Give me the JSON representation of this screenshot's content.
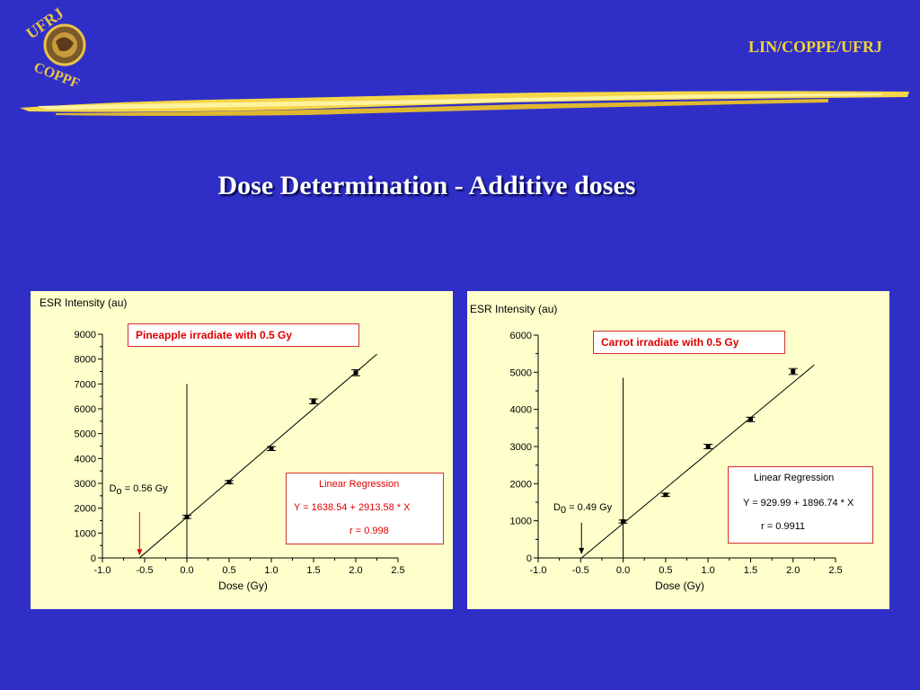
{
  "header": {
    "organization": "LIN/COPPE/UFRJ",
    "logo_text_top": "UFRJ",
    "logo_text_bottom": "COPPE",
    "accent_color": "#f0d23c"
  },
  "slide_title": "Dose  Determination  -  Additive doses",
  "chart_data": [
    {
      "type": "scatter",
      "title": "",
      "ylabel": "ESR  Intensity  (au)",
      "xlabel": "Dose  (Gy)",
      "xlim": [
        -1.0,
        2.5
      ],
      "ylim": [
        0,
        9000
      ],
      "xticks": [
        -1.0,
        -0.5,
        0.0,
        0.5,
        1.0,
        1.5,
        2.0,
        2.5
      ],
      "xtick_labels": [
        "-1.0",
        "-0.5",
        "0.0",
        "0.5",
        "1.0",
        "1.5",
        "2.0",
        "2.5"
      ],
      "yticks": [
        0,
        1000,
        2000,
        3000,
        4000,
        5000,
        6000,
        7000,
        8000,
        9000
      ],
      "ytick_labels": [
        "0",
        "1000",
        "2000",
        "3000",
        "4000",
        "5000",
        "6000",
        "7000",
        "8000",
        "9000"
      ],
      "series": [
        {
          "x": [
            0.0,
            0.5,
            1.0,
            1.5,
            2.0
          ],
          "y": [
            1650,
            3050,
            4400,
            6300,
            7450
          ],
          "yerr": [
            60,
            60,
            80,
            100,
            120
          ]
        }
      ],
      "fit_line": {
        "slope": 2913.58,
        "intercept": 1638.54,
        "x_range": [
          -0.56,
          2.25
        ]
      },
      "vertical_line": {
        "x": 0.0,
        "y_range": [
          0,
          7000
        ]
      },
      "arrow": {
        "x": -0.56,
        "y_from": 1850,
        "y_to": 100,
        "color": "#e00000"
      },
      "dose_annotation": {
        "symbol": "D",
        "subscript": "o",
        "text": "= 0.56  Gy",
        "x": -0.92,
        "y": 2700
      },
      "sample_label": "Pineapple   irradiate   with   0.5  Gy",
      "regression": {
        "heading": "Linear  Regression",
        "equation": "Y  =  1638.54  +  2913.58  *  X",
        "r": "r  =   0.998",
        "color": "#e00000"
      }
    },
    {
      "type": "scatter",
      "title": "",
      "ylabel": "ESR Intensity (au)",
      "xlabel": "Dose (Gy)",
      "xlim": [
        -1.0,
        2.5
      ],
      "ylim": [
        0,
        6000
      ],
      "xticks": [
        -1.0,
        -0.5,
        0.0,
        0.5,
        1.0,
        1.5,
        2.0,
        2.5
      ],
      "xtick_labels": [
        "-1.0",
        "-0.5",
        "0.0",
        "0.5",
        "1.0",
        "1.5",
        "2.0",
        "2.5"
      ],
      "yticks": [
        0,
        1000,
        2000,
        3000,
        4000,
        5000,
        6000
      ],
      "ytick_labels": [
        "0",
        "1000",
        "2000",
        "3000",
        "4000",
        "5000",
        "6000"
      ],
      "series": [
        {
          "x": [
            0.0,
            0.5,
            1.0,
            1.5,
            2.0
          ],
          "y": [
            980,
            1700,
            3000,
            3730,
            5020
          ],
          "yerr": [
            40,
            40,
            60,
            60,
            80
          ]
        }
      ],
      "fit_line": {
        "slope": 1896.74,
        "intercept": 929.99,
        "x_range": [
          -0.49,
          2.25
        ]
      },
      "vertical_line": {
        "x": 0.0,
        "y_range": [
          0,
          4850
        ]
      },
      "arrow": {
        "x": -0.49,
        "y_from": 950,
        "y_to": 100,
        "color": "#000000"
      },
      "dose_annotation": {
        "symbol": "D",
        "subscript": "0",
        "text": "=  0.49 Gy",
        "x": -0.82,
        "y": 1300
      },
      "sample_label": "Carrot  irradiate  with  0.5 Gy",
      "regression": {
        "heading": "Linear Regression",
        "equation": "Y = 929.99  +  1896.74 *  X",
        "r": "r = 0.9911",
        "color": "#000000"
      }
    }
  ]
}
